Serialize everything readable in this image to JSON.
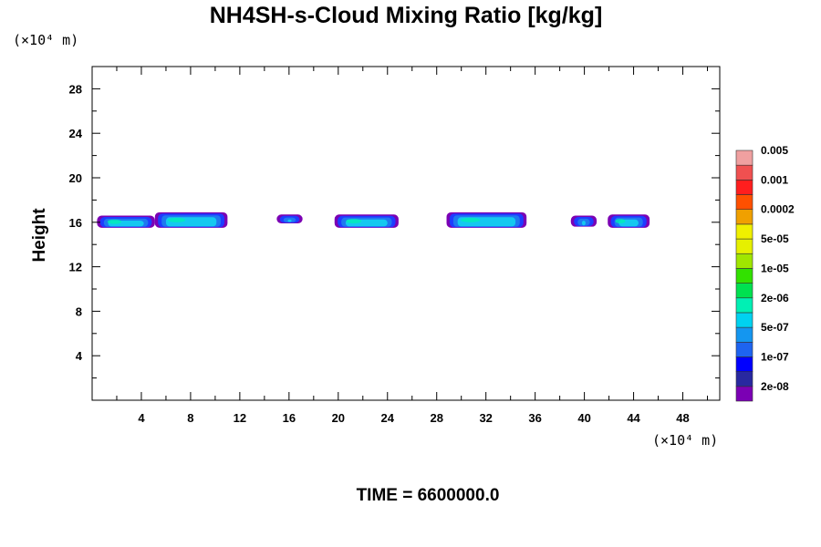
{
  "chart_data": {
    "type": "contour",
    "title": "NH4SH-s-Cloud Mixing Ratio [kg/kg]",
    "ylabel": "Height",
    "x_unit": "(×10⁴ m)",
    "y_unit": "(×10⁴ m)",
    "xlim": [
      0,
      51
    ],
    "ylim": [
      0,
      30
    ],
    "x_ticks": [
      4,
      8,
      12,
      16,
      20,
      24,
      28,
      32,
      36,
      40,
      44,
      48
    ],
    "y_ticks": [
      4,
      8,
      12,
      16,
      20,
      24,
      28
    ],
    "footer": "TIME = 6600000.0",
    "colorbar": {
      "colors": [
        "#7b00b4",
        "#2828a0",
        "#0000ff",
        "#1e64f0",
        "#1496f0",
        "#00d2f0",
        "#00f0b4",
        "#00e150",
        "#32e100",
        "#a0e600",
        "#e6f000",
        "#f0f000",
        "#f0a000",
        "#ff5000",
        "#ff1e1e",
        "#f05050",
        "#f0a0a0"
      ],
      "labels": [
        "2e-08",
        "1e-07",
        "5e-07",
        "2e-06",
        "1e-05",
        "5e-05",
        "0.0002",
        "0.001",
        "0.005"
      ]
    },
    "cloud_patches": [
      {
        "x_start": 0.4,
        "x_end": 5.1,
        "y_bottom": 15.5,
        "y_top": 16.6
      },
      {
        "x_start": 5.1,
        "x_end": 11.0,
        "y_bottom": 15.5,
        "y_top": 16.9
      },
      {
        "x_start": 15.0,
        "x_end": 17.1,
        "y_bottom": 15.9,
        "y_top": 16.7
      },
      {
        "x_start": 19.7,
        "x_end": 24.9,
        "y_bottom": 15.5,
        "y_top": 16.7
      },
      {
        "x_start": 28.8,
        "x_end": 35.3,
        "y_bottom": 15.5,
        "y_top": 16.9
      },
      {
        "x_start": 38.9,
        "x_end": 41.0,
        "y_bottom": 15.6,
        "y_top": 16.6
      },
      {
        "x_start": 41.9,
        "x_end": 45.3,
        "y_bottom": 15.5,
        "y_top": 16.7
      }
    ]
  }
}
